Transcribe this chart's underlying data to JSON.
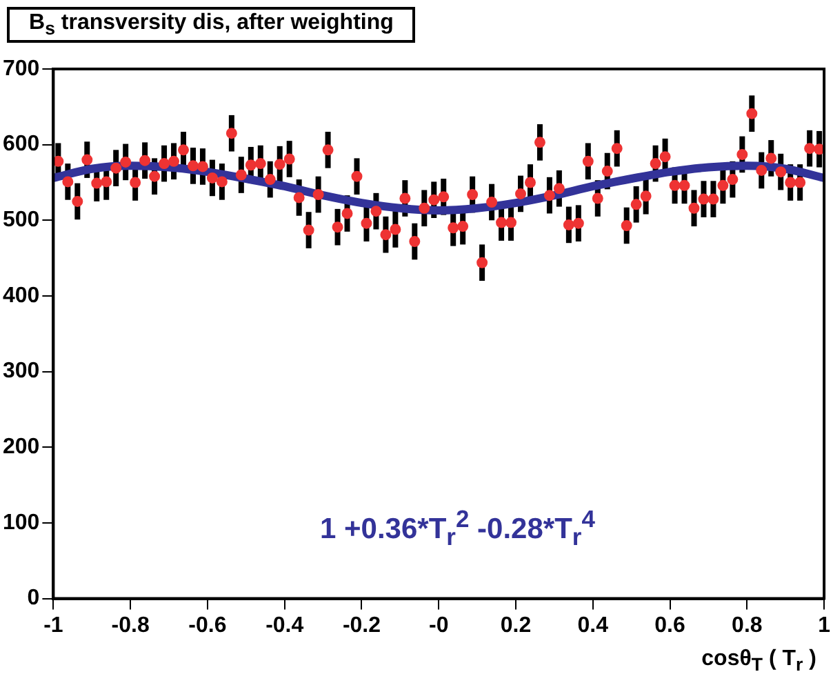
{
  "chart_data": {
    "type": "scatter",
    "title": "B$_{s}$ transversity dis, after weighting",
    "xlabel": "cosθ$_{T}$ ( T$_{r}$ )",
    "annotations": [
      "1 +0.36*T$_{r}$$^{2}$ -0.28*T$_{r}$$^{4}$"
    ],
    "xlim": [
      -1,
      1
    ],
    "ylim": [
      0,
      700
    ],
    "xticks": [
      -1,
      -0.8,
      -0.6,
      -0.4,
      -0.2,
      {
        "value": 0,
        "label": "-0"
      },
      0.2,
      0.4,
      0.6,
      0.8,
      1
    ],
    "yticks": [
      0,
      100,
      200,
      300,
      400,
      500,
      600,
      700
    ],
    "grid": false,
    "legend": false,
    "series": [
      {
        "marker": "circle",
        "color": "#ee3333",
        "x": [
          -0.9875,
          -0.9625,
          -0.9375,
          -0.9125,
          -0.8875,
          -0.8625,
          -0.8375,
          -0.8125,
          -0.7875,
          -0.7625,
          -0.7375,
          -0.7125,
          -0.6875,
          -0.6625,
          -0.6375,
          -0.6125,
          -0.5875,
          -0.5625,
          -0.5375,
          -0.5125,
          -0.4875,
          -0.4625,
          -0.4375,
          -0.4125,
          -0.3875,
          -0.3625,
          -0.3375,
          -0.3125,
          -0.2875,
          -0.2625,
          -0.2375,
          -0.2125,
          -0.1875,
          -0.1625,
          -0.1375,
          -0.1125,
          -0.0875,
          -0.0625,
          -0.0375,
          -0.0125,
          0.0125,
          0.0375,
          0.0625,
          0.0875,
          0.1125,
          0.1375,
          0.1625,
          0.1875,
          0.2125,
          0.2375,
          0.2625,
          0.2875,
          0.3125,
          0.3375,
          0.3625,
          0.3875,
          0.4125,
          0.4375,
          0.4625,
          0.4875,
          0.5125,
          0.5375,
          0.5625,
          0.5875,
          0.6125,
          0.6375,
          0.6625,
          0.6875,
          0.7125,
          0.7375,
          0.7625,
          0.7875,
          0.8125,
          0.8375,
          0.8625,
          0.8875,
          0.9125,
          0.9375,
          0.9625,
          0.9875
        ],
        "values": [
          578,
          551,
          525,
          580,
          549,
          551,
          569,
          577,
          550,
          579,
          558,
          575,
          578,
          593,
          572,
          571,
          556,
          551,
          615,
          560,
          573,
          575,
          554,
          574,
          581,
          530,
          487,
          534,
          593,
          491,
          509,
          558,
          496,
          512,
          481,
          488,
          529,
          472,
          516,
          527,
          531,
          490,
          492,
          534,
          444,
          524,
          497,
          497,
          535,
          550,
          603,
          533,
          542,
          494,
          496,
          578,
          529,
          565,
          595,
          493,
          521,
          532,
          575,
          584,
          546,
          546,
          516,
          528,
          528,
          546,
          554,
          587,
          641,
          566,
          582,
          564,
          550,
          550,
          595,
          594
        ],
        "errors": [
          24,
          24,
          24,
          24,
          24,
          24,
          24,
          24,
          24,
          24,
          24,
          24,
          24,
          24,
          24,
          24,
          24,
          24,
          24,
          24,
          24,
          24,
          24,
          24,
          24,
          24,
          24,
          24,
          24,
          24,
          24,
          24,
          24,
          24,
          24,
          24,
          24,
          24,
          24,
          24,
          24,
          24,
          24,
          24,
          24,
          24,
          24,
          24,
          24,
          24,
          24,
          24,
          24,
          24,
          24,
          24,
          24,
          24,
          24,
          24,
          24,
          24,
          24,
          24,
          24,
          24,
          24,
          24,
          24,
          24,
          24,
          24,
          24,
          24,
          24,
          24,
          24,
          24,
          24,
          24
        ]
      },
      {
        "type": "line",
        "color": "#333399",
        "x": [
          -1,
          -0.9,
          -0.8,
          -0.7,
          -0.6,
          -0.5,
          -0.4,
          -0.3,
          -0.2,
          -0.1,
          0,
          0.1,
          0.2,
          0.3,
          0.4,
          0.5,
          0.6,
          0.7,
          0.8,
          0.9,
          1
        ],
        "values": [
          556,
          568,
          572,
          570,
          564,
          555,
          545,
          533,
          523,
          516,
          513,
          516,
          523,
          533,
          545,
          555,
          564,
          570,
          572,
          568,
          556
        ]
      }
    ]
  }
}
